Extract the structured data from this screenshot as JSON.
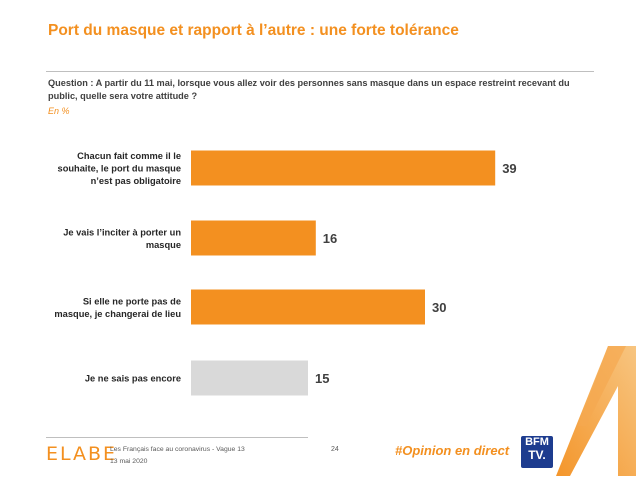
{
  "title": "Port du masque et rapport à l’autre : une forte tolérance",
  "question": "Question : A partir du 11 mai, lorsque vous allez voir des personnes sans masque dans un espace restreint recevant du public, quelle sera votre attitude ?",
  "unit_note": "En %",
  "chart_data": {
    "type": "bar",
    "orientation": "horizontal",
    "categories": [
      [
        "Chacun fait comme il le",
        "souhaite, le port du masque",
        "n’est pas obligatoire"
      ],
      [
        "Je vais l’inciter à porter un",
        "masque"
      ],
      [
        "Si elle ne porte pas de",
        "masque, je changerai de lieu"
      ],
      [
        "Je ne sais pas encore"
      ]
    ],
    "values": [
      39,
      16,
      30,
      15
    ],
    "colors": [
      "#f39020",
      "#f39020",
      "#f39020",
      "#d9d9d9"
    ],
    "data_labels": [
      "39",
      "16",
      "30",
      "15"
    ]
  },
  "footer": {
    "logo": "ELABE",
    "line1": "Les Français face au coronavirus - Vague 13",
    "line2": "13 mai 2020",
    "page_number": "24",
    "hashtag": "#Opinion en direct",
    "bfm_line1": "BFM",
    "bfm_line2": "TV."
  }
}
